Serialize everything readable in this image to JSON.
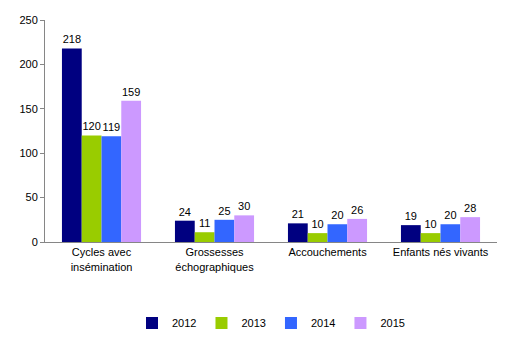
{
  "chart_data": {
    "type": "bar",
    "categories": [
      "Cycles avec insémination",
      "Grossesses échographiques",
      "Accouchements",
      "Enfants nés vivants"
    ],
    "series": [
      {
        "name": "2012",
        "color": "#000080",
        "values": [
          218,
          24,
          21,
          19
        ]
      },
      {
        "name": "2013",
        "color": "#99cc00",
        "values": [
          120,
          11,
          10,
          10
        ]
      },
      {
        "name": "2014",
        "color": "#3366ff",
        "values": [
          119,
          25,
          20,
          20
        ]
      },
      {
        "name": "2015",
        "color": "#cc99ff",
        "values": [
          159,
          30,
          26,
          28
        ]
      }
    ],
    "ylim": [
      0,
      250
    ],
    "yticks": [
      0,
      50,
      100,
      150,
      200,
      250
    ],
    "grid": false,
    "legend": "bottom",
    "data_labels": true
  }
}
